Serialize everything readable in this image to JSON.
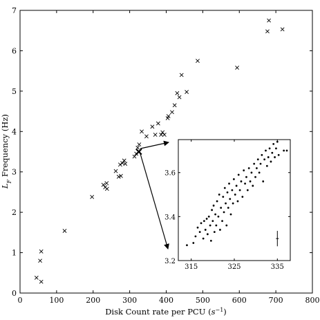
{
  "chart_data": [
    {
      "type": "scatter",
      "marker": "x",
      "xlabel": "Disk Count rate per PCU (s⁻¹)",
      "ylabel": "L_F Frequency (Hz)",
      "xlim": [
        0,
        800
      ],
      "ylim": [
        0,
        7
      ],
      "xticks": [
        "0",
        "100",
        "200",
        "300",
        "400",
        "500",
        "600",
        "700",
        "800"
      ],
      "yticks": [
        "0",
        "1",
        "2",
        "3",
        "4",
        "5",
        "6",
        "7"
      ],
      "grid": false,
      "points": [
        {
          "x": 45,
          "y": 0.38
        },
        {
          "x": 55,
          "y": 0.8
        },
        {
          "x": 58,
          "y": 1.03
        },
        {
          "x": 58,
          "y": 0.28
        },
        {
          "x": 122,
          "y": 1.54
        },
        {
          "x": 197,
          "y": 2.38
        },
        {
          "x": 228,
          "y": 2.68
        },
        {
          "x": 233,
          "y": 2.62
        },
        {
          "x": 237,
          "y": 2.72
        },
        {
          "x": 238,
          "y": 2.58
        },
        {
          "x": 262,
          "y": 3.02
        },
        {
          "x": 270,
          "y": 2.88
        },
        {
          "x": 274,
          "y": 3.18
        },
        {
          "x": 276,
          "y": 2.9
        },
        {
          "x": 280,
          "y": 3.22
        },
        {
          "x": 285,
          "y": 3.28
        },
        {
          "x": 288,
          "y": 3.2
        },
        {
          "x": 313,
          "y": 3.38
        },
        {
          "x": 318,
          "y": 3.45
        },
        {
          "x": 322,
          "y": 3.6
        },
        {
          "x": 326,
          "y": 3.68
        },
        {
          "x": 333,
          "y": 4.0
        },
        {
          "x": 346,
          "y": 3.88
        },
        {
          "x": 362,
          "y": 4.12
        },
        {
          "x": 370,
          "y": 3.92
        },
        {
          "x": 378,
          "y": 4.2
        },
        {
          "x": 386,
          "y": 3.92
        },
        {
          "x": 390,
          "y": 3.98
        },
        {
          "x": 395,
          "y": 3.92
        },
        {
          "x": 404,
          "y": 4.33
        },
        {
          "x": 406,
          "y": 4.38
        },
        {
          "x": 416,
          "y": 4.48
        },
        {
          "x": 423,
          "y": 4.65
        },
        {
          "x": 430,
          "y": 4.95
        },
        {
          "x": 436,
          "y": 4.85
        },
        {
          "x": 442,
          "y": 5.4
        },
        {
          "x": 456,
          "y": 4.98
        },
        {
          "x": 486,
          "y": 5.75
        },
        {
          "x": 594,
          "y": 5.58
        },
        {
          "x": 677,
          "y": 6.48
        },
        {
          "x": 681,
          "y": 6.75
        },
        {
          "x": 718,
          "y": 6.53
        }
      ],
      "highlight_point": {
        "x": 325,
        "y": 3.5
      }
    },
    {
      "type": "scatter",
      "marker": "dot",
      "inset": true,
      "xlim": [
        312,
        338
      ],
      "ylim": [
        3.2,
        3.75
      ],
      "xticks": [
        "315",
        "325",
        "335"
      ],
      "yticks": [
        "3.2",
        "3.4",
        "3.6"
      ],
      "error_bar": {
        "x": 335,
        "y": 3.3,
        "err": 0.035
      },
      "points": [
        {
          "x": 314.0,
          "y": 3.27
        },
        {
          "x": 315.5,
          "y": 3.28
        },
        {
          "x": 316.0,
          "y": 3.31
        },
        {
          "x": 316.5,
          "y": 3.35
        },
        {
          "x": 317.0,
          "y": 3.33
        },
        {
          "x": 317.3,
          "y": 3.37
        },
        {
          "x": 317.8,
          "y": 3.3
        },
        {
          "x": 318.0,
          "y": 3.38
        },
        {
          "x": 318.3,
          "y": 3.34
        },
        {
          "x": 318.6,
          "y": 3.39
        },
        {
          "x": 318.8,
          "y": 3.32
        },
        {
          "x": 319.1,
          "y": 3.4
        },
        {
          "x": 319.4,
          "y": 3.36
        },
        {
          "x": 319.6,
          "y": 3.29
        },
        {
          "x": 319.8,
          "y": 3.43
        },
        {
          "x": 320.0,
          "y": 3.38
        },
        {
          "x": 320.2,
          "y": 3.45
        },
        {
          "x": 320.4,
          "y": 3.33
        },
        {
          "x": 320.6,
          "y": 3.41
        },
        {
          "x": 320.8,
          "y": 3.36
        },
        {
          "x": 321.0,
          "y": 3.47
        },
        {
          "x": 321.3,
          "y": 3.4
        },
        {
          "x": 321.5,
          "y": 3.5
        },
        {
          "x": 321.7,
          "y": 3.34
        },
        {
          "x": 321.9,
          "y": 3.44
        },
        {
          "x": 322.2,
          "y": 3.38
        },
        {
          "x": 322.4,
          "y": 3.49
        },
        {
          "x": 322.6,
          "y": 3.42
        },
        {
          "x": 322.8,
          "y": 3.53
        },
        {
          "x": 323.0,
          "y": 3.46
        },
        {
          "x": 323.2,
          "y": 3.36
        },
        {
          "x": 323.4,
          "y": 3.51
        },
        {
          "x": 323.6,
          "y": 3.44
        },
        {
          "x": 323.8,
          "y": 3.55
        },
        {
          "x": 324.0,
          "y": 3.48
        },
        {
          "x": 324.2,
          "y": 3.41
        },
        {
          "x": 324.5,
          "y": 3.52
        },
        {
          "x": 324.7,
          "y": 3.46
        },
        {
          "x": 324.9,
          "y": 3.57
        },
        {
          "x": 325.2,
          "y": 3.5
        },
        {
          "x": 325.5,
          "y": 3.54
        },
        {
          "x": 325.8,
          "y": 3.47
        },
        {
          "x": 326.0,
          "y": 3.59
        },
        {
          "x": 326.3,
          "y": 3.52
        },
        {
          "x": 326.6,
          "y": 3.56
        },
        {
          "x": 326.9,
          "y": 3.49
        },
        {
          "x": 327.2,
          "y": 3.61
        },
        {
          "x": 327.5,
          "y": 3.55
        },
        {
          "x": 327.8,
          "y": 3.58
        },
        {
          "x": 328.1,
          "y": 3.52
        },
        {
          "x": 328.4,
          "y": 3.62
        },
        {
          "x": 328.7,
          "y": 3.56
        },
        {
          "x": 329.0,
          "y": 3.6
        },
        {
          "x": 329.3,
          "y": 3.54
        },
        {
          "x": 329.6,
          "y": 3.64
        },
        {
          "x": 329.9,
          "y": 3.58
        },
        {
          "x": 330.2,
          "y": 3.62
        },
        {
          "x": 330.5,
          "y": 3.66
        },
        {
          "x": 330.8,
          "y": 3.6
        },
        {
          "x": 331.1,
          "y": 3.64
        },
        {
          "x": 331.4,
          "y": 3.68
        },
        {
          "x": 331.7,
          "y": 3.56
        },
        {
          "x": 332.0,
          "y": 3.66
        },
        {
          "x": 332.3,
          "y": 3.7
        },
        {
          "x": 332.6,
          "y": 3.63
        },
        {
          "x": 332.9,
          "y": 3.67
        },
        {
          "x": 333.2,
          "y": 3.71
        },
        {
          "x": 333.5,
          "y": 3.65
        },
        {
          "x": 333.8,
          "y": 3.69
        },
        {
          "x": 334.1,
          "y": 3.73
        },
        {
          "x": 334.4,
          "y": 3.67
        },
        {
          "x": 334.7,
          "y": 3.71
        },
        {
          "x": 335.0,
          "y": 3.74
        },
        {
          "x": 335.3,
          "y": 3.68
        },
        {
          "x": 336.5,
          "y": 3.7
        },
        {
          "x": 337.2,
          "y": 3.7
        }
      ]
    }
  ]
}
